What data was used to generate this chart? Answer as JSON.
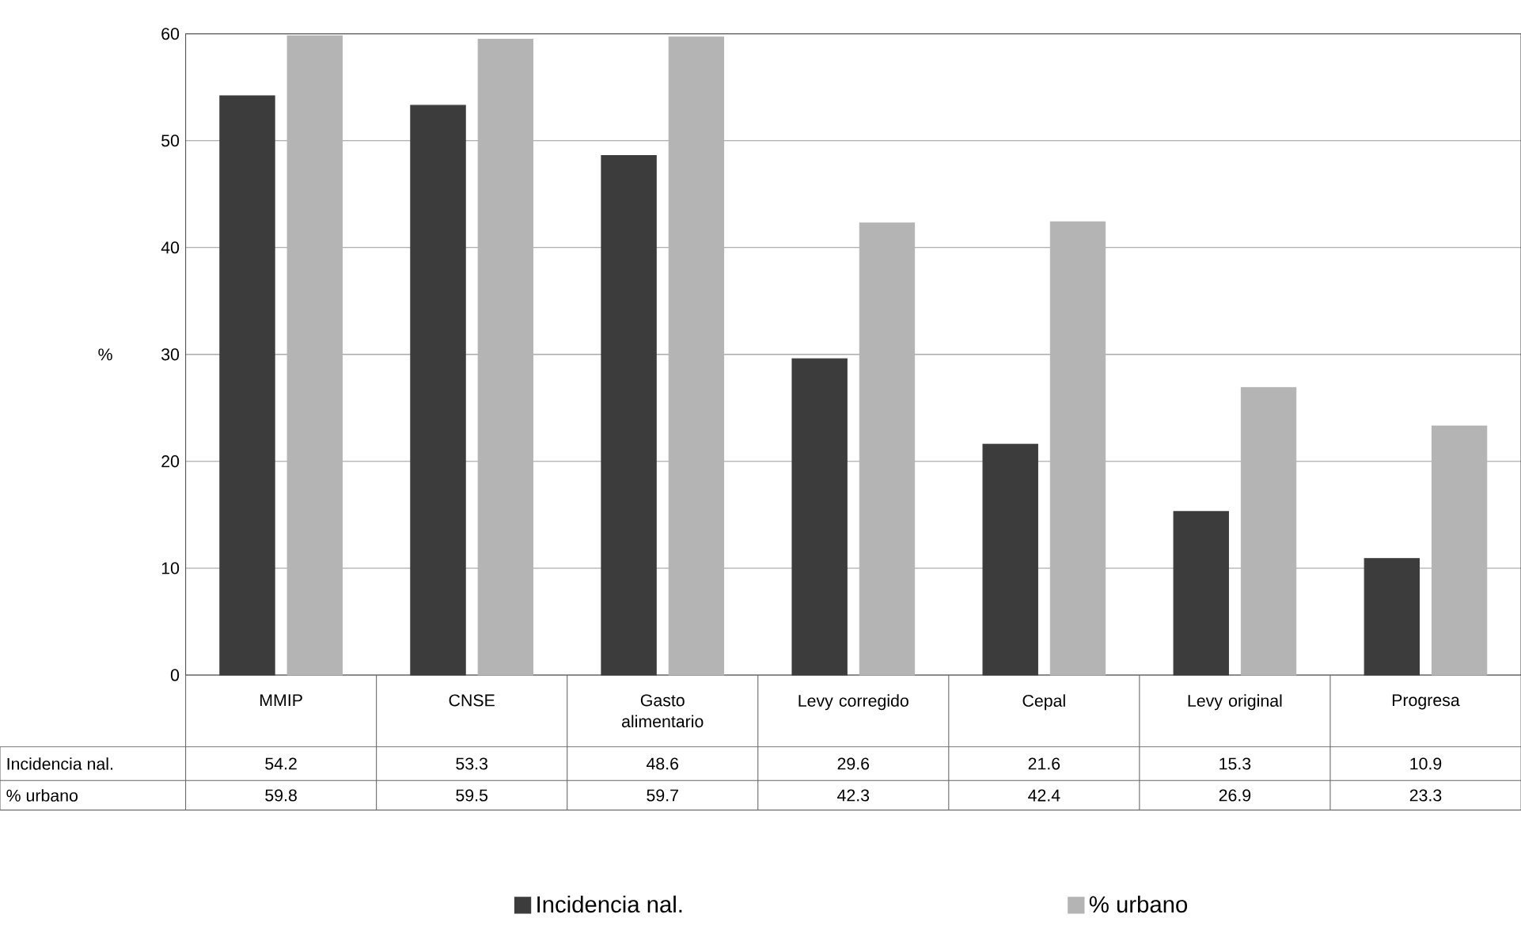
{
  "chart_data": {
    "type": "bar",
    "ylabel": "%",
    "categories": [
      "MMIP",
      "CNSE",
      "Gasto alimentario",
      "Levy corregido",
      "Cepal",
      "Levy original",
      "Progresa"
    ],
    "series": [
      {
        "name": "Incidencia nal.",
        "color": "#3c3c3c",
        "values": [
          54.2,
          53.3,
          48.6,
          29.6,
          21.6,
          15.3,
          10.9
        ]
      },
      {
        "name": "% urbano",
        "color": "#b4b4b4",
        "values": [
          59.8,
          59.5,
          59.7,
          42.3,
          42.4,
          26.9,
          23.3
        ]
      }
    ],
    "ylim": [
      0,
      60
    ],
    "yticks": [
      0,
      10,
      20,
      30,
      40,
      50,
      60
    ],
    "grid": "y",
    "legend": "bottom",
    "data_labels": true
  }
}
